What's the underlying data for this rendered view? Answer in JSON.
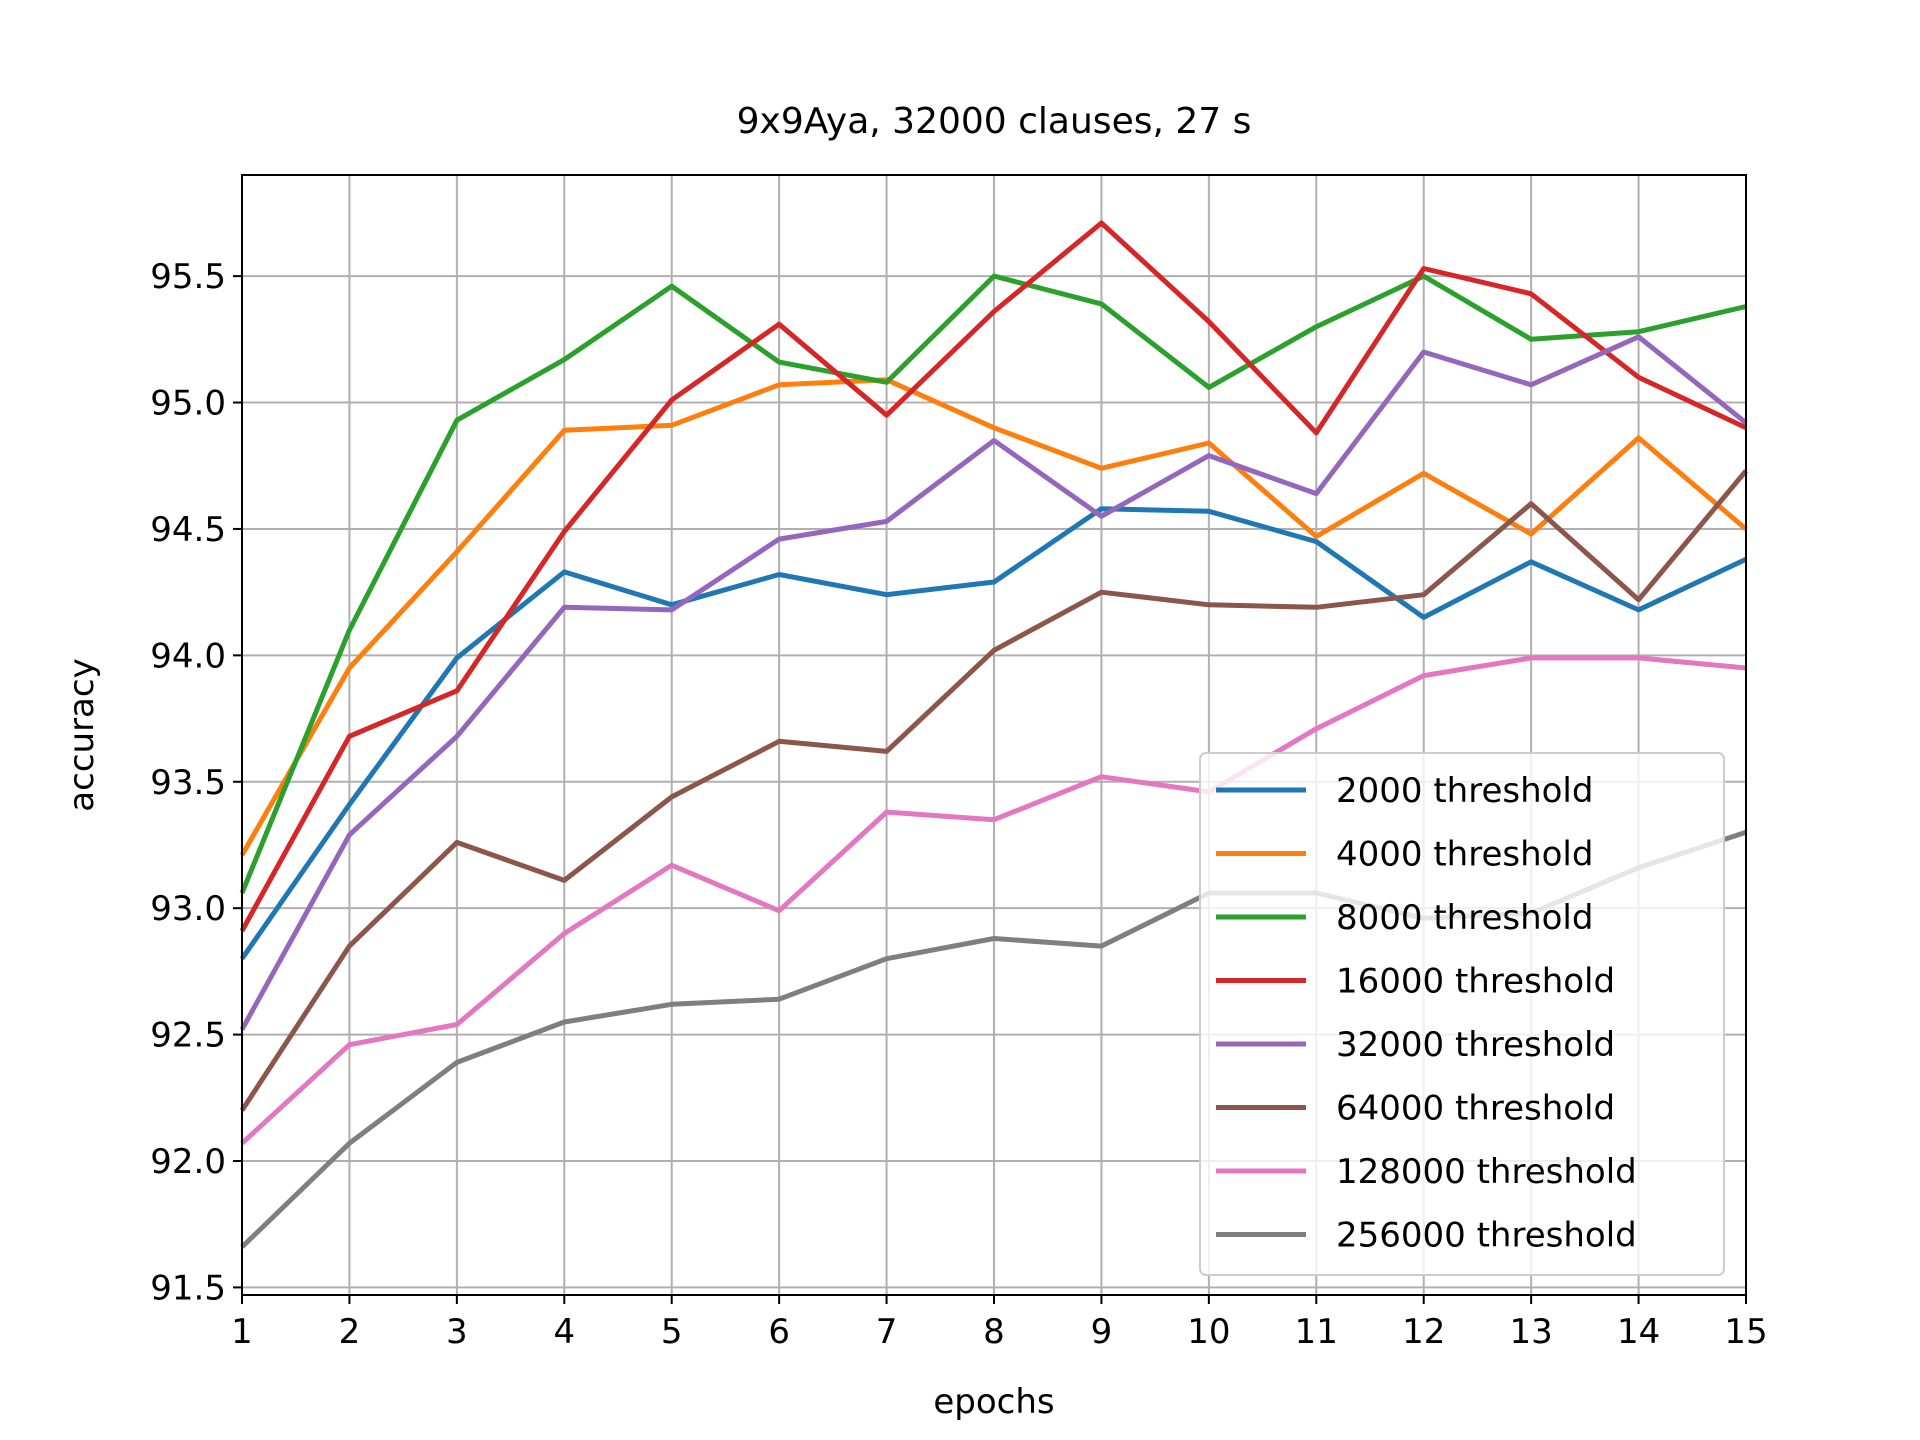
{
  "chart_data": {
    "type": "line",
    "title": "9x9Aya, 32000 clauses, 27 s",
    "xlabel": "epochs",
    "ylabel": "accuracy",
    "xlim": [
      1,
      15
    ],
    "ylim": [
      91.47,
      95.9
    ],
    "grid": true,
    "legend_position": "lower-right",
    "x": [
      1,
      2,
      3,
      4,
      5,
      6,
      7,
      8,
      9,
      10,
      11,
      12,
      13,
      14,
      15
    ],
    "xticks": [
      "1",
      "2",
      "3",
      "4",
      "5",
      "6",
      "7",
      "8",
      "9",
      "10",
      "11",
      "12",
      "13",
      "14",
      "15"
    ],
    "yticks": [
      "91.5",
      "92.0",
      "92.5",
      "93.0",
      "93.5",
      "94.0",
      "94.5",
      "95.0",
      "95.5"
    ],
    "series": [
      {
        "name": "2000 threshold",
        "color": "#1f77b4",
        "values": [
          92.8,
          93.41,
          93.99,
          94.33,
          94.2,
          94.32,
          94.24,
          94.29,
          94.58,
          94.57,
          94.45,
          94.15,
          94.37,
          94.18,
          94.38
        ]
      },
      {
        "name": "4000 threshold",
        "color": "#ff7f0e",
        "values": [
          93.21,
          93.95,
          94.41,
          94.89,
          94.91,
          95.07,
          95.09,
          94.9,
          94.74,
          94.84,
          94.47,
          94.72,
          94.48,
          94.86,
          94.5
        ]
      },
      {
        "name": "8000 threshold",
        "color": "#2ca02c",
        "values": [
          93.06,
          94.1,
          94.93,
          95.17,
          95.46,
          95.16,
          95.08,
          95.5,
          95.39,
          95.06,
          95.3,
          95.5,
          95.25,
          95.28,
          95.38
        ]
      },
      {
        "name": "16000 threshold",
        "color": "#d62728",
        "values": [
          92.91,
          93.68,
          93.86,
          94.49,
          95.01,
          95.31,
          94.95,
          95.36,
          95.71,
          95.32,
          94.88,
          95.53,
          95.43,
          95.1,
          94.9
        ]
      },
      {
        "name": "32000 threshold",
        "color": "#9467bd",
        "values": [
          92.52,
          93.29,
          93.68,
          94.19,
          94.18,
          94.46,
          94.53,
          94.85,
          94.55,
          94.79,
          94.64,
          95.2,
          95.07,
          95.26,
          94.92
        ]
      },
      {
        "name": "64000 threshold",
        "color": "#8c564b",
        "values": [
          92.2,
          92.85,
          93.26,
          93.11,
          93.44,
          93.66,
          93.62,
          94.02,
          94.25,
          94.2,
          94.19,
          94.24,
          94.6,
          94.22,
          94.73
        ]
      },
      {
        "name": "128000 threshold",
        "color": "#e377c2",
        "values": [
          92.07,
          92.46,
          92.54,
          92.9,
          93.17,
          92.99,
          93.38,
          93.35,
          93.52,
          93.46,
          93.71,
          93.92,
          93.99,
          93.99,
          93.95
        ]
      },
      {
        "name": "256000 threshold",
        "color": "#7f7f7f",
        "values": [
          91.66,
          92.07,
          92.39,
          92.55,
          92.62,
          92.64,
          92.8,
          92.88,
          92.85,
          93.06,
          93.06,
          92.96,
          92.98,
          93.16,
          93.3
        ]
      }
    ]
  }
}
